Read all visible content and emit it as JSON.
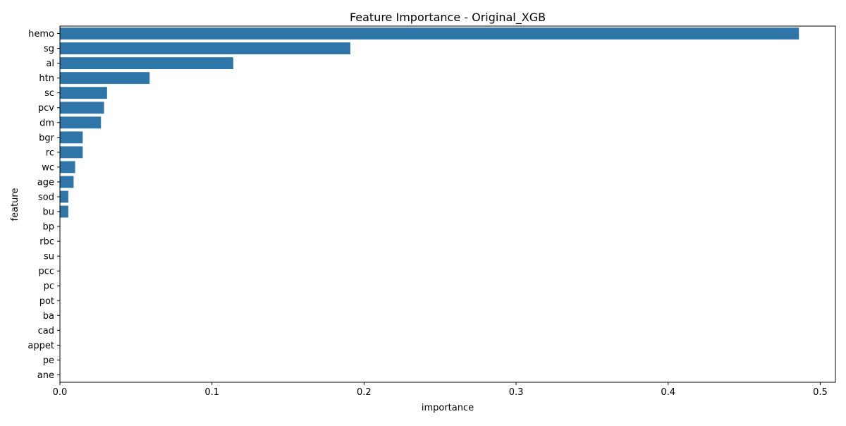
{
  "chart_data": {
    "type": "bar",
    "orientation": "horizontal",
    "title": "Feature Importance - Original_XGB",
    "xlabel": "importance",
    "ylabel": "feature",
    "xlim": [
      0,
      0.51
    ],
    "xticks": [
      0.0,
      0.1,
      0.2,
      0.3,
      0.4,
      0.5
    ],
    "xtick_labels": [
      "0.0",
      "0.1",
      "0.2",
      "0.3",
      "0.4",
      "0.5"
    ],
    "grid": false,
    "bar_color": "#2e75a8",
    "categories": [
      "hemo",
      "sg",
      "al",
      "htn",
      "sc",
      "pcv",
      "dm",
      "bgr",
      "rc",
      "wc",
      "age",
      "sod",
      "bu",
      "bp",
      "rbc",
      "su",
      "pcc",
      "pc",
      "pot",
      "ba",
      "cad",
      "appet",
      "pe",
      "ane"
    ],
    "values": [
      0.486,
      0.191,
      0.114,
      0.059,
      0.031,
      0.029,
      0.027,
      0.015,
      0.015,
      0.01,
      0.009,
      0.0055,
      0.0055,
      0,
      0,
      0,
      0,
      0,
      0,
      0,
      0,
      0,
      0,
      0
    ]
  }
}
